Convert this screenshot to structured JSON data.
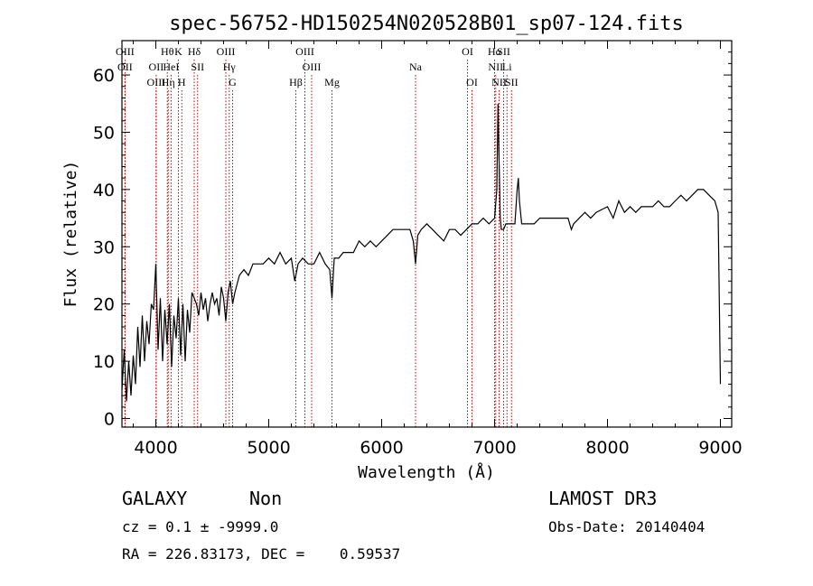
{
  "chart_data": {
    "type": "line",
    "title": "spec-56752-HD150254N020528B01_sp07-124.fits",
    "xlabel": "Wavelength (Å)",
    "ylabel": "Flux (relative)",
    "xlim": [
      3700,
      9100
    ],
    "ylim": [
      -1.5,
      66
    ],
    "xticks": [
      4000,
      5000,
      6000,
      7000,
      8000,
      9000
    ],
    "yticks": [
      0,
      10,
      20,
      30,
      40,
      50,
      60
    ],
    "grid": false,
    "series": [
      {
        "name": "flux",
        "x": [
          3700,
          3720,
          3740,
          3760,
          3780,
          3800,
          3820,
          3840,
          3860,
          3880,
          3900,
          3920,
          3940,
          3960,
          3980,
          4000,
          4020,
          4040,
          4060,
          4080,
          4100,
          4120,
          4140,
          4160,
          4180,
          4200,
          4220,
          4240,
          4260,
          4280,
          4300,
          4320,
          4340,
          4360,
          4380,
          4400,
          4420,
          4440,
          4460,
          4480,
          4500,
          4520,
          4540,
          4560,
          4580,
          4600,
          4620,
          4640,
          4660,
          4680,
          4700,
          4740,
          4780,
          4820,
          4860,
          4900,
          4950,
          5000,
          5050,
          5100,
          5150,
          5200,
          5230,
          5260,
          5300,
          5350,
          5400,
          5450,
          5500,
          5540,
          5560,
          5580,
          5620,
          5660,
          5700,
          5750,
          5800,
          5850,
          5900,
          5950,
          6000,
          6050,
          6100,
          6150,
          6200,
          6250,
          6280,
          6300,
          6320,
          6350,
          6400,
          6450,
          6500,
          6550,
          6600,
          6650,
          6700,
          6750,
          6800,
          6850,
          6900,
          6950,
          7000,
          7020,
          7030,
          7040,
          7050,
          7060,
          7080,
          7100,
          7150,
          7180,
          7200,
          7210,
          7220,
          7240,
          7300,
          7350,
          7400,
          7450,
          7500,
          7550,
          7600,
          7650,
          7680,
          7700,
          7750,
          7800,
          7850,
          7900,
          8000,
          8050,
          8100,
          8150,
          8200,
          8250,
          8300,
          8350,
          8400,
          8450,
          8500,
          8550,
          8600,
          8650,
          8700,
          8750,
          8800,
          8850,
          8900,
          8950,
          8980,
          9000
        ],
        "values": [
          5,
          12,
          3,
          10,
          4,
          11,
          6,
          16,
          9,
          18,
          10,
          17,
          13,
          20,
          19,
          27,
          12,
          21,
          10,
          19,
          13,
          20,
          9,
          18,
          14,
          21,
          11,
          20,
          10,
          19,
          15,
          22,
          21,
          20,
          18,
          22,
          19,
          21,
          17,
          20,
          22,
          20,
          21,
          18,
          23,
          21,
          17,
          22,
          24,
          20,
          22,
          25,
          26,
          25,
          27,
          27,
          27,
          28,
          27,
          29,
          27,
          28,
          24,
          27,
          28,
          27,
          27,
          29,
          27,
          26,
          21,
          28,
          28,
          29,
          29,
          29,
          31,
          30,
          31,
          30,
          31,
          32,
          33,
          33,
          33,
          33,
          31,
          27,
          32,
          33,
          34,
          33,
          32,
          31,
          33,
          33,
          32,
          33,
          34,
          34,
          35,
          34,
          35,
          40,
          55,
          45,
          35,
          33,
          33,
          34,
          34,
          34,
          40,
          42,
          38,
          34,
          34,
          34,
          35,
          35,
          35,
          35,
          35,
          35,
          33,
          34,
          35,
          36,
          35,
          36,
          37,
          35,
          38,
          36,
          37,
          36,
          37,
          37,
          37,
          38,
          37,
          37,
          38,
          39,
          38,
          39,
          40,
          40,
          39,
          38,
          36,
          6
        ]
      }
    ],
    "line_markers": [
      {
        "x": 3727,
        "labels": [
          "OII"
        ],
        "row": 1
      },
      {
        "x": 3727,
        "labels": [
          "OIII"
        ],
        "row": 0
      },
      {
        "x": 4003,
        "labels": [
          "OII"
        ],
        "row": 1
      },
      {
        "x": 4003,
        "labels": [
          "OIII"
        ],
        "row": 2
      },
      {
        "x": 4102,
        "labels": [
          "Hθ"
        ],
        "row": 0
      },
      {
        "x": 4110,
        "labels": [
          "Hη"
        ],
        "row": 2
      },
      {
        "x": 4135,
        "labels": [
          "HeI"
        ],
        "row": 1
      },
      {
        "x": 4200,
        "labels": [
          "K"
        ],
        "row": 0
      },
      {
        "x": 4230,
        "labels": [
          "H"
        ],
        "row": 2
      },
      {
        "x": 4340,
        "labels": [
          "Hδ"
        ],
        "row": 0
      },
      {
        "x": 4370,
        "labels": [
          "SII"
        ],
        "row": 1
      },
      {
        "x": 4620,
        "labels": [
          "OIII"
        ],
        "row": 0
      },
      {
        "x": 4650,
        "labels": [
          "Hγ"
        ],
        "row": 1
      },
      {
        "x": 4680,
        "labels": [
          "G"
        ],
        "row": 2
      },
      {
        "x": 5240,
        "labels": [
          "Hβ"
        ],
        "row": 2
      },
      {
        "x": 5320,
        "labels": [
          "OIII"
        ],
        "row": 0
      },
      {
        "x": 5380,
        "labels": [
          "OIII"
        ],
        "row": 1
      },
      {
        "x": 5560,
        "labels": [
          "Mg"
        ],
        "row": 2
      },
      {
        "x": 6300,
        "labels": [
          "Na"
        ],
        "row": 1
      },
      {
        "x": 6760,
        "labels": [
          "OI"
        ],
        "row": 0
      },
      {
        "x": 6800,
        "labels": [
          "OI"
        ],
        "row": 2
      },
      {
        "x": 7000,
        "labels": [
          "Hα"
        ],
        "row": 0
      },
      {
        "x": 7010,
        "labels": [
          "NII"
        ],
        "row": 1
      },
      {
        "x": 7040,
        "labels": [
          "NII"
        ],
        "row": 2
      },
      {
        "x": 7080,
        "labels": [
          "SII"
        ],
        "row": 0
      },
      {
        "x": 7110,
        "labels": [
          "Li"
        ],
        "row": 1
      },
      {
        "x": 7150,
        "labels": [
          "SII"
        ],
        "row": 2
      }
    ]
  },
  "info": {
    "class": "GALAXY",
    "subclass": "Non",
    "survey": "LAMOST DR3",
    "cz": "cz = 0.1 ± -9999.0",
    "obs_date": "Obs-Date: 20140404",
    "radec": "RA = 226.83173, DEC =    0.59537"
  }
}
